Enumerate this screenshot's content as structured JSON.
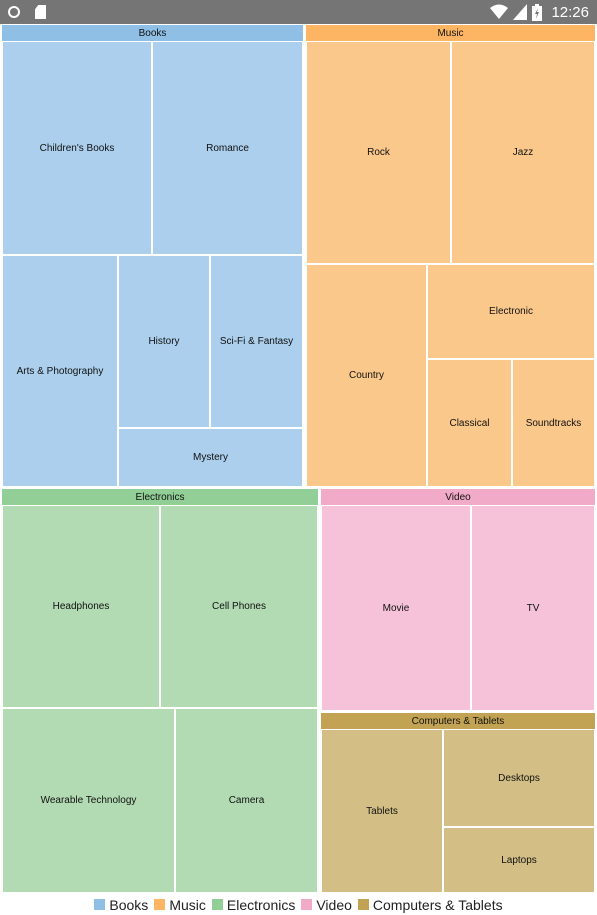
{
  "status_bar": {
    "time": "12:26",
    "icons_left": [
      "circle-notification-icon",
      "sd-card-icon"
    ],
    "icons_right": [
      "wifi-icon",
      "cell-signal-icon",
      "battery-icon"
    ],
    "background": "#757575"
  },
  "chart_data": {
    "type": "treemap",
    "groups": [
      {
        "name": "Books",
        "header_color": "#8fbfe5",
        "tile_color": "#abcfec",
        "items": [
          "Children's Books",
          "Romance",
          "Arts & Photography",
          "History",
          "Sci-Fi & Fantasy",
          "Mystery"
        ]
      },
      {
        "name": "Music",
        "header_color": "#fdb564",
        "tile_color": "#fbc88c",
        "items": [
          "Rock",
          "Jazz",
          "Country",
          "Electronic",
          "Classical",
          "Soundtracks"
        ]
      },
      {
        "name": "Electronics",
        "header_color": "#91cf96",
        "tile_color": "#b2dbb3",
        "items": [
          "Headphones",
          "Cell Phones",
          "Wearable Technology",
          "Camera"
        ]
      },
      {
        "name": "Video",
        "header_color": "#f2aac9",
        "tile_color": "#f5c2d9",
        "items": [
          "Movie",
          "TV"
        ]
      },
      {
        "name": "Computers & Tablets",
        "header_color": "#c2a354",
        "tile_color": "#d3bf85",
        "items": [
          "Tablets",
          "Desktops",
          "Laptops"
        ]
      }
    ],
    "legend": {
      "position": "bottom",
      "items": [
        "Books",
        "Music",
        "Electronics",
        "Video",
        "Computers & Tablets"
      ]
    }
  }
}
